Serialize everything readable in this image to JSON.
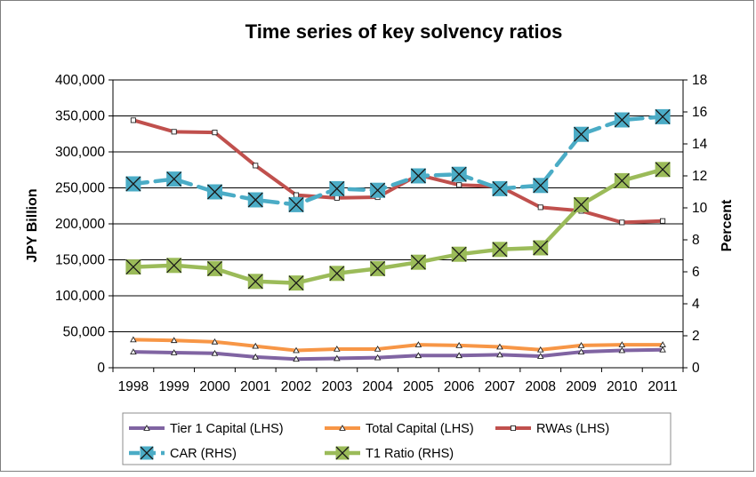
{
  "chart_data": {
    "type": "line",
    "title": "Time series of key solvency ratios",
    "ylabel_left": "JPY Billion",
    "ylabel_right": "Percent",
    "ylim_left": [
      0,
      400000
    ],
    "ylim_right": [
      0,
      18
    ],
    "yticks_left": [
      "0",
      "50,000",
      "100,000",
      "150,000",
      "200,000",
      "250,000",
      "300,000",
      "350,000",
      "400,000"
    ],
    "yticks_right": [
      "0",
      "2",
      "4",
      "6",
      "8",
      "10",
      "12",
      "14",
      "16",
      "18"
    ],
    "categories": [
      "1998",
      "1999",
      "2000",
      "2001",
      "2002",
      "2003",
      "2004",
      "2005",
      "2006",
      "2007",
      "2008",
      "2009",
      "2010",
      "2011"
    ],
    "grid": true,
    "legend_position": "bottom",
    "series": [
      {
        "name": "Tier 1 Capital (LHS)",
        "axis": "left",
        "color": "#8064a2",
        "marker": "triangle",
        "dashed": false,
        "values": [
          22000,
          21000,
          20000,
          15000,
          12000,
          13000,
          14000,
          17000,
          17000,
          18000,
          16000,
          22000,
          24000,
          25000
        ]
      },
      {
        "name": "Total Capital (LHS)",
        "axis": "left",
        "color": "#f79646",
        "marker": "triangle",
        "dashed": false,
        "values": [
          39000,
          38000,
          36000,
          30000,
          24000,
          26000,
          26000,
          32000,
          31000,
          29000,
          25000,
          31000,
          32000,
          32000
        ]
      },
      {
        "name": "RWAs (LHS)",
        "axis": "left",
        "color": "#c0504d",
        "marker": "square",
        "dashed": false,
        "values": [
          344000,
          328000,
          327000,
          281000,
          240000,
          236000,
          237000,
          268000,
          254000,
          252000,
          223000,
          218000,
          202000,
          204000
        ]
      },
      {
        "name": "CAR (RHS)",
        "axis": "right",
        "color": "#4bacc6",
        "marker": "x",
        "dashed": true,
        "values": [
          11.5,
          11.8,
          11.0,
          10.5,
          10.2,
          11.2,
          11.1,
          12.0,
          12.1,
          11.2,
          11.4,
          14.6,
          15.5,
          15.7
        ]
      },
      {
        "name": "T1 Ratio (RHS)",
        "axis": "right",
        "color": "#9bbb59",
        "marker": "x",
        "dashed": false,
        "values": [
          6.3,
          6.4,
          6.2,
          5.4,
          5.3,
          5.9,
          6.2,
          6.6,
          7.1,
          7.4,
          7.5,
          10.2,
          11.7,
          12.4
        ]
      }
    ]
  }
}
